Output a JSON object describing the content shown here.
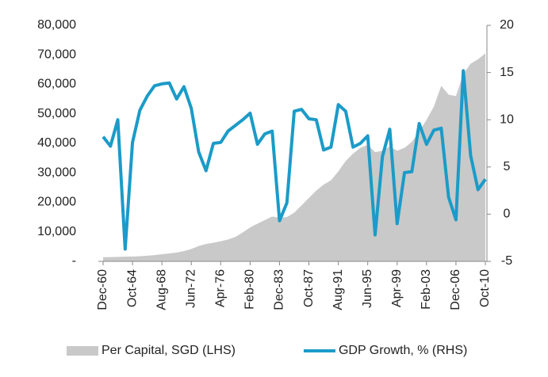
{
  "chart_data": {
    "type": "combo",
    "categories": [
      "Dec-60",
      null,
      null,
      null,
      "Oct-64",
      null,
      null,
      null,
      "Aug-68",
      null,
      null,
      null,
      "Jun-72",
      null,
      null,
      null,
      "Apr-76",
      null,
      null,
      null,
      "Feb-80",
      null,
      null,
      null,
      "Dec-83",
      null,
      null,
      null,
      "Oct-87",
      null,
      null,
      null,
      "Aug-91",
      null,
      null,
      null,
      "Jun-95",
      null,
      null,
      null,
      "Apr-99",
      null,
      null,
      null,
      "Feb-03",
      null,
      null,
      null,
      "Dec-06",
      null,
      null,
      null,
      "Oct-10"
    ],
    "series": [
      {
        "name": "Per Capital, SGD (LHS)",
        "type": "area",
        "color": "#c9c9c9",
        "values": [
          1400,
          1450,
          1500,
          1600,
          1650,
          1750,
          1900,
          2100,
          2400,
          2700,
          3000,
          3500,
          4200,
          5200,
          5900,
          6300,
          6800,
          7400,
          8300,
          9800,
          11500,
          12800,
          14000,
          15200,
          14800,
          15000,
          16500,
          19000,
          21500,
          24000,
          26000,
          27500,
          30500,
          34000,
          36500,
          38500,
          39500,
          37000,
          37500,
          39000,
          37500,
          38500,
          40500,
          44000,
          48000,
          52500,
          59500,
          56500,
          56000,
          63500,
          67000,
          68500,
          70500
        ]
      },
      {
        "name": "GDP Growth, % (RHS)",
        "type": "line",
        "axis": "y2",
        "color": "#1b9bc8",
        "values": [
          8.2,
          7.2,
          10,
          -3.7,
          7.6,
          11,
          12.5,
          13.6,
          13.8,
          13.9,
          12.2,
          13.5,
          11.2,
          6.6,
          4.6,
          7.5,
          7.6,
          8.8,
          9.4,
          10,
          10.7,
          7.4,
          8.5,
          8.8,
          -0.7,
          1.2,
          10.9,
          11.1,
          10.1,
          10,
          6.8,
          7.1,
          11.6,
          10.9,
          7.1,
          7.5,
          8.3,
          -2.2,
          6.1,
          9,
          -1,
          4.4,
          4.5,
          9.6,
          7.4,
          8.9,
          9.1,
          1.8,
          -0.6,
          15.2,
          6.2,
          2.6,
          3.7
        ]
      }
    ],
    "ylim": [
      0,
      80000
    ],
    "yticks": [
      {
        "value": 0,
        "label": "-"
      },
      {
        "value": 10000,
        "label": "10,000"
      },
      {
        "value": 20000,
        "label": "20,000"
      },
      {
        "value": 30000,
        "label": "30,000"
      },
      {
        "value": 40000,
        "label": "40,000"
      },
      {
        "value": 50000,
        "label": "50,000"
      },
      {
        "value": 60000,
        "label": "60,000"
      },
      {
        "value": 70000,
        "label": "70,000"
      },
      {
        "value": 80000,
        "label": "80,000"
      }
    ],
    "y2lim": [
      -5,
      20
    ],
    "y2ticks": [
      -5,
      0,
      5,
      10,
      15,
      20
    ],
    "legend": "bottom",
    "grid": false
  }
}
